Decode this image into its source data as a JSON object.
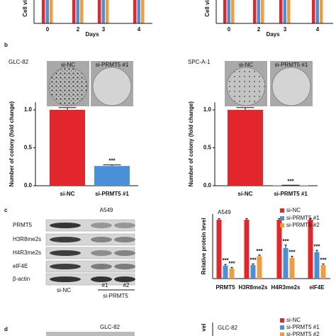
{
  "panel_labels": [
    "b",
    "c",
    "d"
  ],
  "plates": [
    {
      "labels": [
        "si-NC",
        "si-PRMT5 #1"
      ]
    },
    {
      "labels": [
        "si-NC",
        "si-PRMT5 #1"
      ]
    }
  ],
  "blot_c": {
    "title": "A549",
    "rows": [
      "PRMT5",
      "H3R8me2s",
      "H4R3me2s",
      "eIF4E",
      "β-actin"
    ],
    "lanes": [
      "si-NC",
      "#1",
      "#2"
    ],
    "group": "si-PRMT5"
  },
  "blot_d": {
    "title": "GLC-82"
  },
  "chart_data": [
    {
      "type": "bar",
      "y_label": "Cell vi",
      "x_label": "Days",
      "categories": [
        "0",
        "2",
        "3",
        "4"
      ]
    },
    {
      "type": "bar",
      "y_label": "Cell vi",
      "x_label": "Days",
      "categories": [
        "0",
        "2",
        "3",
        "4"
      ]
    },
    {
      "type": "bar",
      "title": "GLC-82",
      "y_label": "Number of colony (fold change)",
      "categories": [
        "si-NC",
        "si-PRMT5 #1"
      ],
      "values": [
        1.0,
        0.26
      ],
      "errors": [
        0.03,
        0.015
      ],
      "annotations": [
        null,
        "***"
      ],
      "colors": [
        "#e3262b",
        "#4a90d9"
      ],
      "ylim": [
        0,
        1.1
      ],
      "yticks": [
        {
          "value": 0,
          "label": "0.0"
        },
        {
          "value": 0.5,
          "label": "0.5"
        },
        {
          "value": 1,
          "label": "1.0"
        }
      ]
    },
    {
      "type": "bar",
      "title": "SPC-A-1",
      "y_label": "Number of colony (fold change)",
      "categories": [
        "si-NC",
        "si-PRMT5 #1"
      ],
      "values": [
        1.0,
        0.005
      ],
      "errors": [
        0.03,
        0.002
      ],
      "annotations": [
        null,
        "***"
      ],
      "colors": [
        "#e3262b",
        "#4a90d9"
      ],
      "ylim": [
        0,
        1.1
      ],
      "yticks": [
        {
          "value": 0,
          "label": "0.0"
        },
        {
          "value": 0.5,
          "label": "0.5"
        },
        {
          "value": 1,
          "label": "1.0"
        }
      ]
    },
    {
      "type": "bar",
      "title": "A549",
      "y_label": "Relative protein level",
      "categories": [
        "PRMT5",
        "H3R8me2s",
        "H4R3me2s",
        "eIF4E"
      ],
      "ylim": [
        0,
        1.1
      ],
      "series": [
        {
          "name": "si-NC",
          "color": "#e3262b",
          "values": [
            1.0,
            1.0,
            1.0,
            1.0
          ],
          "errors": [
            0.02,
            0.02,
            0.02,
            0.02
          ],
          "annotations": [
            null,
            null,
            null,
            null
          ]
        },
        {
          "name": "si-PRMT5 #1",
          "color": "#4a90d9",
          "values": [
            0.22,
            0.23,
            0.52,
            0.45
          ],
          "errors": [
            0.02,
            0.02,
            0.05,
            0.03
          ],
          "annotations": [
            "***",
            "***",
            "***",
            "***"
          ]
        },
        {
          "name": "si-PRMT5 #2",
          "color": "#f39c3c",
          "values": [
            0.17,
            0.38,
            0.35,
            0.23
          ],
          "errors": [
            0.02,
            0.02,
            0.03,
            0.02
          ],
          "annotations": [
            "***",
            "***",
            "***",
            "***"
          ]
        }
      ]
    },
    {
      "type": "bar",
      "title": "GLC-82",
      "y_label": "vel",
      "series": [
        {
          "name": "si-NC",
          "color": "#e3262b"
        },
        {
          "name": "si-PRMT5 #1",
          "color": "#4a90d9"
        },
        {
          "name": "si-PRMT5 #2",
          "color": "#f39c3c"
        }
      ]
    }
  ]
}
